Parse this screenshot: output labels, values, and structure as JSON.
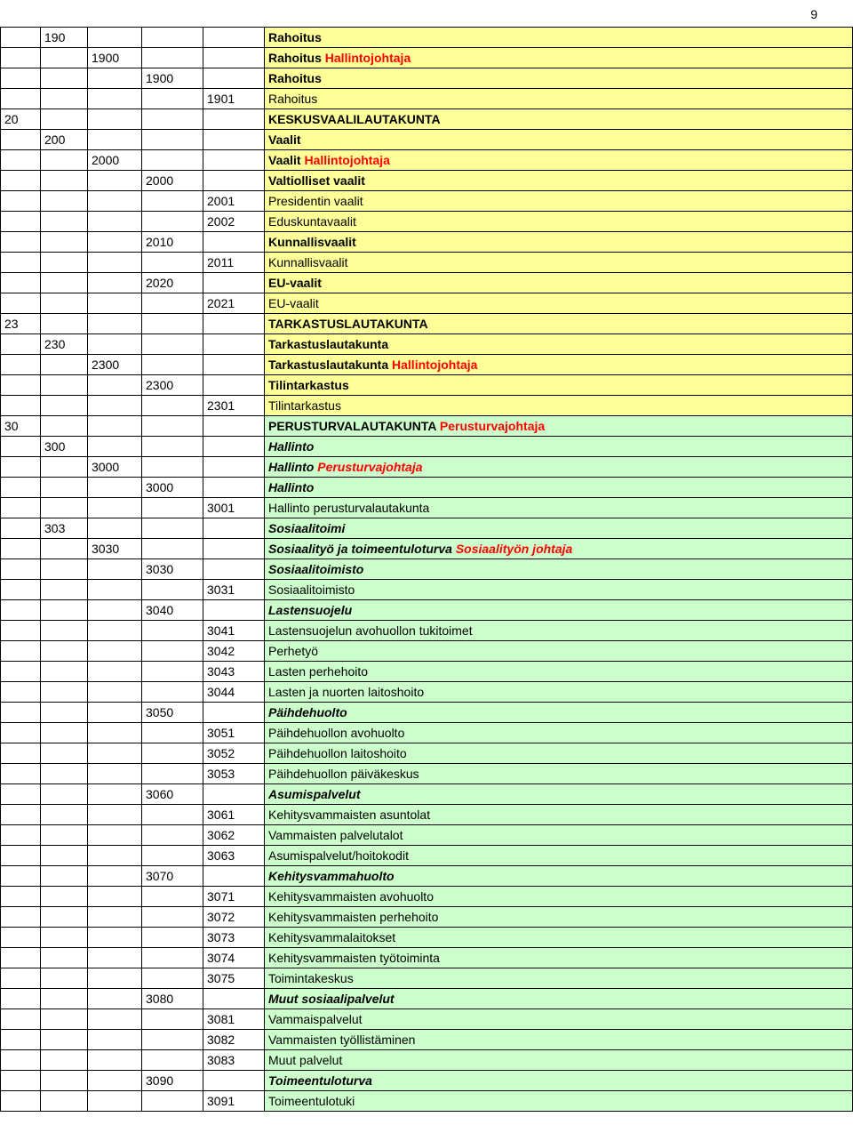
{
  "page_number": "9",
  "colors": {
    "yellow": "#ffff99",
    "green": "#ccffcc",
    "red": "#ff0000",
    "black": "#000000",
    "white": "#ffffff"
  },
  "rows": [
    {
      "c0": "",
      "c1": "190",
      "c2": "",
      "c3": "",
      "c4": "",
      "label_parts": [
        {
          "t": "Rahoitus",
          "b": true
        }
      ],
      "fill": "yellow"
    },
    {
      "c0": "",
      "c1": "",
      "c2": "1900",
      "c3": "",
      "c4": "",
      "label_parts": [
        {
          "t": "Rahoitus  ",
          "b": true
        },
        {
          "t": "Hallintojohtaja",
          "b": true,
          "red": true
        }
      ],
      "fill": "yellow"
    },
    {
      "c0": "",
      "c1": "",
      "c2": "",
      "c3": "1900",
      "c4": "",
      "label_parts": [
        {
          "t": "Rahoitus",
          "b": true
        }
      ],
      "fill": "yellow"
    },
    {
      "c0": "",
      "c1": "",
      "c2": "",
      "c3": "",
      "c4": "1901",
      "label_parts": [
        {
          "t": "Rahoitus"
        }
      ],
      "fill": "yellow"
    },
    {
      "c0": "20",
      "c1": "",
      "c2": "",
      "c3": "",
      "c4": "",
      "label_parts": [
        {
          "t": "KESKUSVAALILAUTAKUNTA",
          "b": true
        }
      ],
      "fill": "yellow"
    },
    {
      "c0": "",
      "c1": "200",
      "c2": "",
      "c3": "",
      "c4": "",
      "label_parts": [
        {
          "t": "Vaalit",
          "b": true
        }
      ],
      "fill": "yellow"
    },
    {
      "c0": "",
      "c1": "",
      "c2": "2000",
      "c3": "",
      "c4": "",
      "label_parts": [
        {
          "t": "Vaalit  ",
          "b": true
        },
        {
          "t": "Hallintojohtaja",
          "b": true,
          "red": true
        }
      ],
      "fill": "yellow"
    },
    {
      "c0": "",
      "c1": "",
      "c2": "",
      "c3": "2000",
      "c4": "",
      "label_parts": [
        {
          "t": "Valtiolliset vaalit",
          "b": true
        }
      ],
      "fill": "yellow"
    },
    {
      "c0": "",
      "c1": "",
      "c2": "",
      "c3": "",
      "c4": "2001",
      "label_parts": [
        {
          "t": "Presidentin vaalit"
        }
      ],
      "fill": "yellow"
    },
    {
      "c0": "",
      "c1": "",
      "c2": "",
      "c3": "",
      "c4": "2002",
      "label_parts": [
        {
          "t": "Eduskuntavaalit"
        }
      ],
      "fill": "yellow"
    },
    {
      "c0": "",
      "c1": "",
      "c2": "",
      "c3": "2010",
      "c4": "",
      "label_parts": [
        {
          "t": "Kunnallisvaalit",
          "b": true
        }
      ],
      "fill": "yellow"
    },
    {
      "c0": "",
      "c1": "",
      "c2": "",
      "c3": "",
      "c4": "2011",
      "label_parts": [
        {
          "t": "Kunnallisvaalit"
        }
      ],
      "fill": "yellow"
    },
    {
      "c0": "",
      "c1": "",
      "c2": "",
      "c3": "2020",
      "c4": "",
      "label_parts": [
        {
          "t": "EU-vaalit",
          "b": true
        }
      ],
      "fill": "yellow"
    },
    {
      "c0": "",
      "c1": "",
      "c2": "",
      "c3": "",
      "c4": "2021",
      "label_parts": [
        {
          "t": "EU-vaalit"
        }
      ],
      "fill": "yellow"
    },
    {
      "c0": "23",
      "c1": "",
      "c2": "",
      "c3": "",
      "c4": "",
      "label_parts": [
        {
          "t": "TARKASTUSLAUTAKUNTA",
          "b": true
        }
      ],
      "fill": "yellow"
    },
    {
      "c0": "",
      "c1": "230",
      "c2": "",
      "c3": "",
      "c4": "",
      "label_parts": [
        {
          "t": "Tarkastuslautakunta",
          "b": true
        }
      ],
      "fill": "yellow"
    },
    {
      "c0": "",
      "c1": "",
      "c2": "2300",
      "c3": "",
      "c4": "",
      "label_parts": [
        {
          "t": "Tarkastuslautakunta  ",
          "b": true
        },
        {
          "t": "Hallintojohtaja",
          "b": true,
          "red": true
        }
      ],
      "fill": "yellow"
    },
    {
      "c0": "",
      "c1": "",
      "c2": "",
      "c3": "2300",
      "c4": "",
      "label_parts": [
        {
          "t": "Tilintarkastus",
          "b": true
        }
      ],
      "fill": "yellow"
    },
    {
      "c0": "",
      "c1": "",
      "c2": "",
      "c3": "",
      "c4": "2301",
      "label_parts": [
        {
          "t": "Tilintarkastus"
        }
      ],
      "fill": "yellow"
    },
    {
      "c0": "30",
      "c1": "",
      "c2": "",
      "c3": "",
      "c4": "",
      "label_parts": [
        {
          "t": "PERUSTURVALAUTAKUNTA ",
          "b": true
        },
        {
          "t": "Perusturvajohtaja",
          "b": true,
          "red": true
        }
      ],
      "fill": "green"
    },
    {
      "c0": "",
      "c1": "300",
      "c2": "",
      "c3": "",
      "c4": "",
      "label_parts": [
        {
          "t": "Hallinto",
          "b": true,
          "i": true
        }
      ],
      "fill": "green"
    },
    {
      "c0": "",
      "c1": "",
      "c2": "3000",
      "c3": "",
      "c4": "",
      "label_parts": [
        {
          "t": "Hallinto ",
          "b": true,
          "i": true
        },
        {
          "t": "Perusturvajohtaja",
          "b": true,
          "i": true,
          "red": true
        }
      ],
      "fill": "green"
    },
    {
      "c0": "",
      "c1": "",
      "c2": "",
      "c3": "3000",
      "c4": "",
      "label_parts": [
        {
          "t": "Hallinto",
          "b": true,
          "i": true
        }
      ],
      "fill": "green"
    },
    {
      "c0": "",
      "c1": "",
      "c2": "",
      "c3": "",
      "c4": "3001",
      "label_parts": [
        {
          "t": "Hallinto perusturvalautakunta"
        }
      ],
      "fill": "green"
    },
    {
      "c0": "",
      "c1": "303",
      "c2": "",
      "c3": "",
      "c4": "",
      "label_parts": [
        {
          "t": "Sosiaalitoimi",
          "b": true,
          "i": true
        }
      ],
      "fill": "green"
    },
    {
      "c0": "",
      "c1": "",
      "c2": "3030",
      "c3": "",
      "c4": "",
      "label_parts": [
        {
          "t": "Sosiaalityö ja toimeentuloturva ",
          "b": true,
          "i": true
        },
        {
          "t": "Sosiaalityön johtaja",
          "b": true,
          "i": true,
          "red": true
        }
      ],
      "fill": "green"
    },
    {
      "c0": "",
      "c1": "",
      "c2": "",
      "c3": "3030",
      "c4": "",
      "label_parts": [
        {
          "t": "Sosiaalitoimisto",
          "b": true,
          "i": true
        }
      ],
      "fill": "green"
    },
    {
      "c0": "",
      "c1": "",
      "c2": "",
      "c3": "",
      "c4": "3031",
      "label_parts": [
        {
          "t": "Sosiaalitoimisto"
        }
      ],
      "fill": "green"
    },
    {
      "c0": "",
      "c1": "",
      "c2": "",
      "c3": "3040",
      "c4": "",
      "label_parts": [
        {
          "t": "Lastensuojelu",
          "b": true,
          "i": true
        }
      ],
      "fill": "green"
    },
    {
      "c0": "",
      "c1": "",
      "c2": "",
      "c3": "",
      "c4": "3041",
      "label_parts": [
        {
          "t": "Lastensuojelun avohuollon tukitoimet"
        }
      ],
      "fill": "green"
    },
    {
      "c0": "",
      "c1": "",
      "c2": "",
      "c3": "",
      "c4": "3042",
      "label_parts": [
        {
          "t": "Perhetyö"
        }
      ],
      "fill": "green"
    },
    {
      "c0": "",
      "c1": "",
      "c2": "",
      "c3": "",
      "c4": "3043",
      "label_parts": [
        {
          "t": "Lasten perhehoito"
        }
      ],
      "fill": "green"
    },
    {
      "c0": "",
      "c1": "",
      "c2": "",
      "c3": "",
      "c4": "3044",
      "label_parts": [
        {
          "t": "Lasten ja nuorten laitoshoito"
        }
      ],
      "fill": "green"
    },
    {
      "c0": "",
      "c1": "",
      "c2": "",
      "c3": "3050",
      "c4": "",
      "label_parts": [
        {
          "t": "Päihdehuolto",
          "b": true,
          "i": true
        }
      ],
      "fill": "green"
    },
    {
      "c0": "",
      "c1": "",
      "c2": "",
      "c3": "",
      "c4": "3051",
      "label_parts": [
        {
          "t": "Päihdehuollon avohuolto"
        }
      ],
      "fill": "green"
    },
    {
      "c0": "",
      "c1": "",
      "c2": "",
      "c3": "",
      "c4": "3052",
      "label_parts": [
        {
          "t": "Päihdehuollon laitoshoito"
        }
      ],
      "fill": "green"
    },
    {
      "c0": "",
      "c1": "",
      "c2": "",
      "c3": "",
      "c4": "3053",
      "label_parts": [
        {
          "t": "Päihdehuollon päiväkeskus"
        }
      ],
      "fill": "green"
    },
    {
      "c0": "",
      "c1": "",
      "c2": "",
      "c3": "3060",
      "c4": "",
      "label_parts": [
        {
          "t": "Asumispalvelut",
          "b": true,
          "i": true
        }
      ],
      "fill": "green"
    },
    {
      "c0": "",
      "c1": "",
      "c2": "",
      "c3": "",
      "c4": "3061",
      "label_parts": [
        {
          "t": "Kehitysvammaisten asuntolat"
        }
      ],
      "fill": "green"
    },
    {
      "c0": "",
      "c1": "",
      "c2": "",
      "c3": "",
      "c4": "3062",
      "label_parts": [
        {
          "t": "Vammaisten palvelutalot"
        }
      ],
      "fill": "green"
    },
    {
      "c0": "",
      "c1": "",
      "c2": "",
      "c3": "",
      "c4": "3063",
      "label_parts": [
        {
          "t": "Asumispalvelut/hoitokodit"
        }
      ],
      "fill": "green"
    },
    {
      "c0": "",
      "c1": "",
      "c2": "",
      "c3": "3070",
      "c4": "",
      "label_parts": [
        {
          "t": "Kehitysvammahuolto",
          "b": true,
          "i": true
        }
      ],
      "fill": "green"
    },
    {
      "c0": "",
      "c1": "",
      "c2": "",
      "c3": "",
      "c4": "3071",
      "label_parts": [
        {
          "t": "Kehitysvammaisten avohuolto"
        }
      ],
      "fill": "green"
    },
    {
      "c0": "",
      "c1": "",
      "c2": "",
      "c3": "",
      "c4": "3072",
      "label_parts": [
        {
          "t": "Kehitysvammaisten perhehoito"
        }
      ],
      "fill": "green"
    },
    {
      "c0": "",
      "c1": "",
      "c2": "",
      "c3": "",
      "c4": "3073",
      "label_parts": [
        {
          "t": "Kehitysvammalaitokset"
        }
      ],
      "fill": "green"
    },
    {
      "c0": "",
      "c1": "",
      "c2": "",
      "c3": "",
      "c4": "3074",
      "label_parts": [
        {
          "t": "Kehitysvammaisten työtoiminta"
        }
      ],
      "fill": "green"
    },
    {
      "c0": "",
      "c1": "",
      "c2": "",
      "c3": "",
      "c4": "3075",
      "label_parts": [
        {
          "t": "Toimintakeskus"
        }
      ],
      "fill": "green"
    },
    {
      "c0": "",
      "c1": "",
      "c2": "",
      "c3": "3080",
      "c4": "",
      "label_parts": [
        {
          "t": "Muut sosiaalipalvelut",
          "b": true,
          "i": true
        }
      ],
      "fill": "green"
    },
    {
      "c0": "",
      "c1": "",
      "c2": "",
      "c3": "",
      "c4": "3081",
      "label_parts": [
        {
          "t": "Vammaispalvelut"
        }
      ],
      "fill": "green"
    },
    {
      "c0": "",
      "c1": "",
      "c2": "",
      "c3": "",
      "c4": "3082",
      "label_parts": [
        {
          "t": "Vammaisten työllistäminen"
        }
      ],
      "fill": "green"
    },
    {
      "c0": "",
      "c1": "",
      "c2": "",
      "c3": "",
      "c4": "3083",
      "label_parts": [
        {
          "t": "Muut palvelut"
        }
      ],
      "fill": "green"
    },
    {
      "c0": "",
      "c1": "",
      "c2": "",
      "c3": "3090",
      "c4": "",
      "label_parts": [
        {
          "t": "Toimeentuloturva",
          "b": true,
          "i": true
        }
      ],
      "fill": "green"
    },
    {
      "c0": "",
      "c1": "",
      "c2": "",
      "c3": "",
      "c4": "3091",
      "label_parts": [
        {
          "t": "Toimeentulotuki"
        }
      ],
      "fill": "green"
    }
  ]
}
